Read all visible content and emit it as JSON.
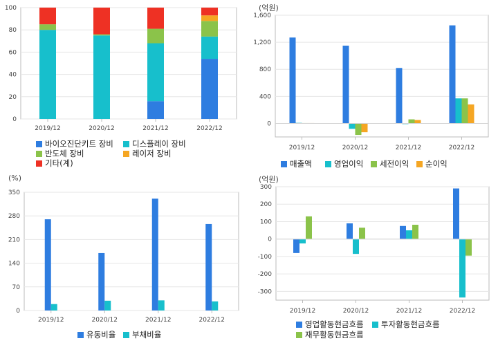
{
  "colors": {
    "blue": "#2e7de0",
    "teal": "#17bfcc",
    "green": "#8bc34a",
    "orange": "#f5a623",
    "red": "#ee3124",
    "grid": "#e6e6e6",
    "axis": "#bbbbbb"
  },
  "chart_data": [
    {
      "type": "bar",
      "stacked": true,
      "categories": [
        "2019/12",
        "2020/12",
        "2021/12",
        "2022/12"
      ],
      "ylim": [
        0,
        100
      ],
      "yticks": [
        "0",
        "20",
        "40",
        "60",
        "80",
        "100"
      ],
      "series": [
        {
          "name": "바이오진단키트 장비",
          "color": "#2e7de0",
          "values": [
            0,
            0,
            16,
            54
          ]
        },
        {
          "name": "디스플레이 장비",
          "color": "#17bfcc",
          "values": [
            80,
            75,
            52,
            20
          ]
        },
        {
          "name": "반도체 장비",
          "color": "#8bc34a",
          "values": [
            5,
            1,
            13,
            14
          ]
        },
        {
          "name": "레이저 장비",
          "color": "#f5a623",
          "values": [
            0,
            0,
            0,
            5
          ]
        },
        {
          "name": "기타(계)",
          "color": "#ee3124",
          "values": [
            15,
            24,
            19,
            7
          ]
        }
      ]
    },
    {
      "type": "bar",
      "unit": "(억원)",
      "categories": [
        "2019/12",
        "2020/12",
        "2021/12",
        "2022/12"
      ],
      "ylim": [
        -200,
        1600
      ],
      "yticks": [
        "0",
        "400",
        "800",
        "1,200",
        "1,600"
      ],
      "series": [
        {
          "name": "매출액",
          "color": "#2e7de0",
          "values": [
            1270,
            1150,
            820,
            1450
          ]
        },
        {
          "name": "영업이익",
          "color": "#17bfcc",
          "values": [
            8,
            -80,
            -10,
            370
          ]
        },
        {
          "name": "세전이익",
          "color": "#8bc34a",
          "values": [
            5,
            -170,
            60,
            370
          ]
        },
        {
          "name": "순이익",
          "color": "#f5a623",
          "values": [
            5,
            -130,
            50,
            280
          ]
        }
      ]
    },
    {
      "type": "bar",
      "unit": "(%)",
      "categories": [
        "2019/12",
        "2020/12",
        "2021/12",
        "2022/12"
      ],
      "ylim": [
        0,
        350
      ],
      "yticks": [
        "0",
        "70",
        "140",
        "210",
        "280",
        "350"
      ],
      "series": [
        {
          "name": "유동비율",
          "color": "#2e7de0",
          "values": [
            270,
            170,
            331,
            256
          ]
        },
        {
          "name": "부채비율",
          "color": "#17bfcc",
          "values": [
            19,
            29,
            30,
            27
          ]
        }
      ]
    },
    {
      "type": "bar",
      "unit": "(억원)",
      "categories": [
        "2019/12",
        "2020/12",
        "2021/12",
        "2022/12"
      ],
      "ylim": [
        -350,
        300
      ],
      "yticks": [
        "300",
        "200",
        "100",
        "0",
        "-100",
        "-200",
        "-300"
      ],
      "series": [
        {
          "name": "영업활동현금흐름",
          "color": "#2e7de0",
          "values": [
            -80,
            90,
            75,
            290
          ]
        },
        {
          "name": "투자활동현금흐름",
          "color": "#17bfcc",
          "values": [
            -25,
            -85,
            50,
            -335
          ]
        },
        {
          "name": "재무활동현금흐름",
          "color": "#8bc34a",
          "values": [
            130,
            65,
            82,
            -95
          ]
        }
      ]
    }
  ]
}
